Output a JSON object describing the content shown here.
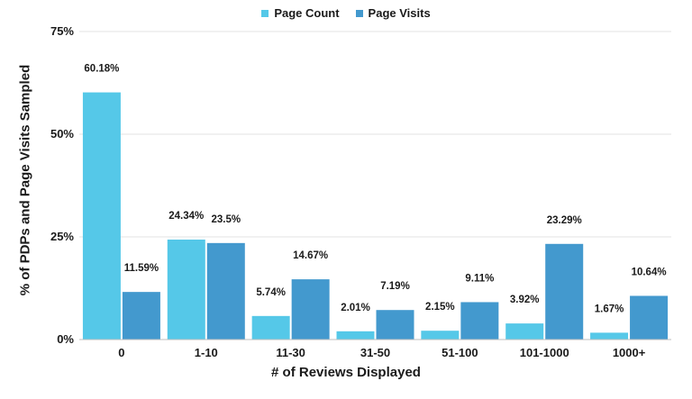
{
  "chart_data": {
    "type": "bar",
    "categories": [
      "0",
      "1-10",
      "11-30",
      "31-50",
      "51-100",
      "101-1000",
      "1000+"
    ],
    "series": [
      {
        "name": "Page Count",
        "values": [
          60.18,
          24.34,
          5.74,
          2.01,
          2.15,
          3.92,
          1.67
        ],
        "labels": [
          "60.18%",
          "24.34%",
          "5.74%",
          "2.01%",
          "2.15%",
          "3.92%",
          "1.67%"
        ],
        "color": "#55c8e8"
      },
      {
        "name": "Page Visits",
        "values": [
          11.59,
          23.5,
          14.67,
          7.19,
          9.11,
          23.29,
          10.64
        ],
        "labels": [
          "11.59%",
          "23.5%",
          "14.67%",
          "7.19%",
          "9.11%",
          "23.29%",
          "10.64%"
        ],
        "color": "#4399ce"
      }
    ],
    "xlabel": "# of Reviews Displayed",
    "ylabel": "% of PDPs and Page Visits Sampled",
    "ylim": [
      0,
      75
    ],
    "yticks": [
      0,
      25,
      50,
      75
    ],
    "ytick_labels": [
      "0%",
      "25%",
      "50%",
      "75%"
    ],
    "grid": true,
    "legend_position": "top-center"
  }
}
